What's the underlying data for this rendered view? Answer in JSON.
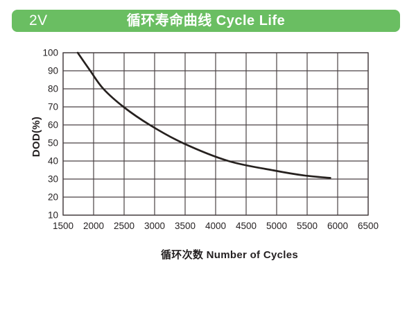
{
  "header": {
    "badge": "2V",
    "title": "循环寿命曲线 Cycle Life",
    "bg_color": "#6abe62",
    "text_color": "#ffffff"
  },
  "chart_data": {
    "type": "line",
    "title": "循环寿命曲线 Cycle Life",
    "xlabel": "循环次数  Number of Cycles",
    "ylabel": "DOD(%)",
    "xlim": [
      1500,
      6500
    ],
    "ylim": [
      10,
      100
    ],
    "xticks": [
      1500,
      2000,
      2500,
      3000,
      3500,
      4000,
      4500,
      5000,
      5500,
      6000,
      6500
    ],
    "yticks": [
      100,
      90,
      80,
      70,
      60,
      50,
      40,
      30,
      20,
      10
    ],
    "grid": true,
    "legend": "none",
    "grid_color": "#4a4244",
    "label_color": "#231f20",
    "series": [
      {
        "name": "cycle-life-curve",
        "color": "#26211f",
        "stroke_width": 2.7,
        "points": [
          [
            1740,
            100
          ],
          [
            1945,
            90
          ],
          [
            2160,
            80
          ],
          [
            2490,
            70
          ],
          [
            2920,
            60
          ],
          [
            3460,
            50
          ],
          [
            4210,
            40
          ],
          [
            4950,
            34.8
          ],
          [
            5450,
            32.0
          ],
          [
            5880,
            30.6
          ]
        ]
      }
    ]
  }
}
